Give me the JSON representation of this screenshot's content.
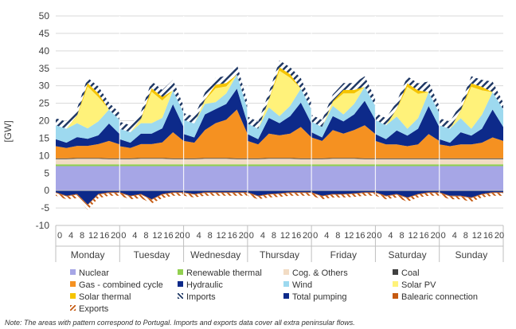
{
  "chart_data": {
    "type": "area",
    "ylabel": "[GW]",
    "ylim": [
      -10,
      50
    ],
    "yticks": [
      -10,
      -5,
      0,
      5,
      10,
      15,
      20,
      25,
      30,
      35,
      40,
      45,
      50
    ],
    "hour_ticks": [
      "0",
      "4",
      "8",
      "12",
      "16",
      "20"
    ],
    "days": [
      "Monday",
      "Tuesday",
      "Wednesday",
      "Thursday",
      "Friday",
      "Saturday",
      "Sunday"
    ],
    "x_hours": [
      0,
      4,
      8,
      12,
      16,
      20,
      24
    ],
    "series": [
      {
        "name": "Nuclear",
        "color": "#a6a6e6",
        "values": [
          [
            7,
            7,
            7,
            7,
            7,
            7,
            7
          ],
          [
            7,
            7,
            7,
            7,
            7,
            7,
            7
          ],
          [
            7,
            7,
            7,
            7,
            7,
            7,
            7
          ],
          [
            7,
            7,
            7,
            7,
            7,
            7,
            7
          ],
          [
            7,
            7,
            7,
            7,
            7,
            7,
            7
          ],
          [
            7,
            7,
            7,
            7,
            7,
            7,
            7
          ],
          [
            7,
            7,
            7,
            7,
            7,
            7,
            7
          ]
        ]
      },
      {
        "name": "Renewable thermal",
        "color": "#92d050",
        "values": [
          [
            0.5,
            0.5,
            0.5,
            0.5,
            0.5,
            0.5,
            0.5
          ],
          [
            0.5,
            0.5,
            0.5,
            0.5,
            0.5,
            0.5,
            0.5
          ],
          [
            0.5,
            0.5,
            0.5,
            0.5,
            0.5,
            0.5,
            0.5
          ],
          [
            0.5,
            0.5,
            0.5,
            0.5,
            0.5,
            0.5,
            0.5
          ],
          [
            0.5,
            0.5,
            0.5,
            0.5,
            0.5,
            0.5,
            0.5
          ],
          [
            0.5,
            0.5,
            0.5,
            0.5,
            0.5,
            0.5,
            0.5
          ],
          [
            0.5,
            0.5,
            0.5,
            0.5,
            0.5,
            0.5,
            0.5
          ]
        ]
      },
      {
        "name": "Cog. & Others",
        "color": "#f2dcc4",
        "values": [
          [
            1.5,
            1.5,
            1.6,
            1.6,
            1.6,
            1.5,
            1.5
          ],
          [
            1.5,
            1.5,
            1.6,
            1.6,
            1.6,
            1.5,
            1.5
          ],
          [
            1.5,
            1.5,
            1.6,
            1.6,
            1.6,
            1.5,
            1.5
          ],
          [
            1.5,
            1.5,
            1.6,
            1.6,
            1.6,
            1.5,
            1.5
          ],
          [
            1.5,
            1.5,
            1.6,
            1.6,
            1.6,
            1.5,
            1.5
          ],
          [
            1.5,
            1.5,
            1.5,
            1.5,
            1.5,
            1.5,
            1.5
          ],
          [
            1.5,
            1.5,
            1.5,
            1.5,
            1.5,
            1.5,
            1.5
          ]
        ]
      },
      {
        "name": "Coal",
        "color": "#404040",
        "values": [
          [
            0.2,
            0.2,
            0.2,
            0.2,
            0.2,
            0.2,
            0.2
          ],
          [
            0.2,
            0.2,
            0.2,
            0.2,
            0.2,
            0.2,
            0.2
          ],
          [
            0.2,
            0.2,
            0.2,
            0.2,
            0.2,
            0.2,
            0.2
          ],
          [
            0.2,
            0.2,
            0.2,
            0.2,
            0.2,
            0.2,
            0.2
          ],
          [
            0.2,
            0.2,
            0.2,
            0.2,
            0.2,
            0.2,
            0.2
          ],
          [
            0.2,
            0.2,
            0.2,
            0.2,
            0.2,
            0.2,
            0.2
          ],
          [
            0.2,
            0.2,
            0.2,
            0.2,
            0.2,
            0.2,
            0.2
          ]
        ]
      },
      {
        "name": "Gas - combined cycle",
        "color": "#f59121",
        "values": [
          [
            3.5,
            3,
            3.5,
            3.5,
            4,
            5,
            4
          ],
          [
            3.5,
            3,
            4,
            4,
            4.5,
            7.5,
            5
          ],
          [
            5,
            4.5,
            8,
            10,
            11,
            14,
            7
          ],
          [
            5,
            4,
            7,
            6.5,
            7,
            9,
            6
          ],
          [
            6,
            5,
            8,
            7,
            8,
            9.5,
            7
          ],
          [
            5,
            4,
            4,
            3.5,
            4,
            7,
            5
          ],
          [
            4,
            3.5,
            4,
            4,
            4.5,
            6,
            5
          ]
        ]
      },
      {
        "name": "Hydraulic",
        "color": "#0d2a8a",
        "values": [
          [
            2,
            1.5,
            2.5,
            2,
            2.5,
            5,
            3
          ],
          [
            2,
            1.5,
            3,
            3,
            4,
            8,
            4
          ],
          [
            2,
            1.5,
            4.5,
            4,
            4.5,
            6,
            3
          ],
          [
            2,
            1.5,
            4.5,
            3.5,
            5,
            7,
            4
          ],
          [
            1.5,
            1,
            4,
            3.5,
            4.5,
            7,
            4
          ],
          [
            2,
            1.5,
            4,
            3,
            4.5,
            8,
            4
          ],
          [
            1.5,
            1,
            3.5,
            2.5,
            4,
            8,
            4
          ]
        ]
      },
      {
        "name": "Wind",
        "color": "#9dd9ef",
        "values": [
          [
            4,
            4,
            4,
            3,
            4,
            4,
            4
          ],
          [
            3,
            3,
            3,
            3,
            3,
            4,
            4
          ],
          [
            4,
            4,
            3,
            2,
            3,
            4,
            4
          ],
          [
            3,
            3,
            3,
            2,
            3,
            4,
            4
          ],
          [
            3,
            3,
            3,
            2,
            3,
            4,
            4
          ],
          [
            4,
            4,
            4,
            2,
            3,
            4,
            4
          ],
          [
            4,
            4,
            4,
            2,
            4,
            5,
            5
          ]
        ]
      },
      {
        "name": "Solar PV",
        "color": "#fff27a",
        "values": [
          [
            0,
            0,
            2,
            12,
            7,
            0,
            0
          ],
          [
            0,
            0,
            1,
            9,
            5,
            0,
            0
          ],
          [
            0,
            0,
            1,
            4,
            2,
            0,
            0
          ],
          [
            0,
            0,
            2,
            13,
            8,
            0,
            0
          ],
          [
            0,
            0,
            1,
            6,
            3,
            0,
            0
          ],
          [
            0,
            0,
            2,
            12,
            7,
            0,
            0
          ],
          [
            0,
            0,
            2,
            12,
            7,
            0,
            0
          ]
        ]
      },
      {
        "name": "Solar thermal",
        "color": "#f5c400",
        "values": [
          [
            0,
            0,
            0.2,
            1,
            1,
            0,
            0
          ],
          [
            0,
            0,
            0.2,
            1,
            1,
            0,
            0
          ],
          [
            0,
            0,
            0.2,
            1,
            1,
            0,
            0
          ],
          [
            0,
            0,
            0.2,
            1,
            1,
            0,
            0
          ],
          [
            0,
            0,
            0.2,
            1,
            1,
            0,
            0
          ],
          [
            0,
            0,
            0.2,
            1,
            1,
            0,
            0
          ],
          [
            0,
            0,
            0.2,
            1,
            1,
            0,
            0
          ]
        ]
      },
      {
        "name": "Imports",
        "color": "#1f3864",
        "values": [
          [
            2,
            2,
            2,
            1.5,
            2,
            2,
            2
          ],
          [
            2,
            2,
            2,
            2,
            2,
            3,
            2
          ],
          [
            2,
            2,
            2,
            2,
            2,
            3,
            2
          ],
          [
            2,
            2,
            2,
            2,
            2,
            3,
            2
          ],
          [
            2,
            2,
            2,
            2,
            2,
            3,
            2
          ],
          [
            2,
            2,
            2,
            2,
            2,
            3,
            2
          ],
          [
            2,
            2,
            2,
            2,
            2,
            3,
            2
          ]
        ]
      }
    ],
    "negative_series": [
      {
        "name": "Total pumping",
        "color": "#0d2a8a",
        "values": [
          [
            -0.5,
            -1.5,
            -1,
            -4,
            -1,
            -0.5,
            -0.5
          ],
          [
            -0.5,
            -1.5,
            -1,
            -2.5,
            -1,
            -0.5,
            -0.5
          ],
          [
            -0.5,
            -1,
            -0.5,
            -0.5,
            -0.5,
            -0.5,
            -0.5
          ],
          [
            -0.5,
            -1.5,
            -1,
            -0.8,
            -0.5,
            -0.5,
            -0.5
          ],
          [
            -0.5,
            -1.5,
            -1,
            -1,
            -0.8,
            -0.5,
            -0.5
          ],
          [
            -0.5,
            -1.5,
            -1,
            -2,
            -1,
            -0.5,
            -0.5
          ],
          [
            -0.5,
            -1.5,
            -1.5,
            -2,
            -1,
            -0.5,
            -0.5
          ]
        ]
      },
      {
        "name": "Balearic connection",
        "color": "#c55a11",
        "values": [
          [
            -0.2,
            -0.2,
            -0.2,
            -0.2,
            -0.2,
            -0.2,
            -0.2
          ],
          [
            -0.2,
            -0.2,
            -0.2,
            -0.2,
            -0.2,
            -0.2,
            -0.2
          ],
          [
            -0.2,
            -0.2,
            -0.2,
            -0.2,
            -0.2,
            -0.2,
            -0.2
          ],
          [
            -0.2,
            -0.2,
            -0.2,
            -0.2,
            -0.2,
            -0.2,
            -0.2
          ],
          [
            -0.2,
            -0.2,
            -0.2,
            -0.2,
            -0.2,
            -0.2,
            -0.2
          ],
          [
            -0.2,
            -0.2,
            -0.2,
            -0.2,
            -0.2,
            -0.2,
            -0.2
          ],
          [
            -0.2,
            -0.2,
            -0.2,
            -0.2,
            -0.2,
            -0.2,
            -0.2
          ]
        ]
      },
      {
        "name": "Exports",
        "color": "#e08a2e",
        "values": [
          [
            -0.8,
            -0.8,
            -1,
            -1.3,
            -1,
            -0.8,
            -0.8
          ],
          [
            -0.8,
            -0.8,
            -1,
            -1,
            -1,
            -0.8,
            -0.8
          ],
          [
            -0.8,
            -0.8,
            -0.8,
            -0.8,
            -0.8,
            -0.8,
            -0.8
          ],
          [
            -0.8,
            -0.8,
            -0.8,
            -0.8,
            -0.8,
            -0.8,
            -0.8
          ],
          [
            -0.8,
            -0.8,
            -0.8,
            -0.8,
            -0.8,
            -0.8,
            -0.8
          ],
          [
            -0.8,
            -0.8,
            -0.8,
            -1,
            -0.8,
            -0.8,
            -0.8
          ],
          [
            -0.8,
            -0.8,
            -0.8,
            -1,
            -0.8,
            -0.8,
            -0.8
          ]
        ]
      }
    ],
    "legend": [
      "Nuclear",
      "Renewable thermal",
      "Cog. & Others",
      "Coal",
      "Gas - combined cycle",
      "Hydraulic",
      "Wind",
      "Solar PV",
      "Solar thermal",
      "Imports",
      "Total pumping",
      "Balearic connection",
      "Exports"
    ],
    "legend_placement": "bottom",
    "grid": true
  },
  "note": "Note: The areas with pattern correspond to Portugal. Imports and exports data cover all extra peninsular flows."
}
